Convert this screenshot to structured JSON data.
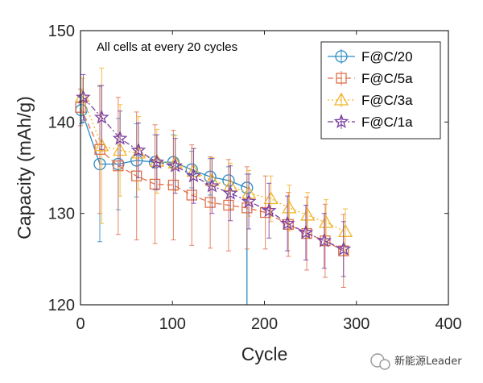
{
  "chart_data": {
    "type": "line",
    "annotation": "All cells at every 20 cycles",
    "xlabel": "Cycle",
    "ylabel": "Capacity (mAh/g)",
    "xlim": [
      0,
      400
    ],
    "ylim": [
      120,
      150
    ],
    "xticks": [
      0,
      100,
      200,
      300,
      400
    ],
    "yticks": [
      120,
      130,
      140,
      150
    ],
    "grid": false,
    "legend_position": "top-right",
    "series": [
      {
        "name": "F@C/20",
        "color": "#2b8cc4",
        "line_style": "solid",
        "marker": "circle",
        "x": [
          1,
          21,
          41,
          61,
          81,
          101,
          121,
          141,
          161,
          181
        ],
        "y": [
          141.3,
          135.4,
          135.4,
          135.8,
          135.6,
          135.6,
          134.8,
          134.0,
          133.6,
          132.8
        ],
        "error": [
          1.5,
          8.5,
          5.0,
          4.0,
          3.0,
          3.0,
          2.0,
          2.0,
          1.5,
          1.5
        ],
        "drop_to": 120
      },
      {
        "name": "F@C/5a",
        "color": "#e0704c",
        "line_style": "dashed",
        "marker": "square",
        "x": [
          0,
          21,
          41,
          61,
          81,
          101,
          121,
          141,
          161,
          181,
          201,
          226,
          246,
          266,
          286
        ],
        "y": [
          141.6,
          137.0,
          135.2,
          134.1,
          133.2,
          133.1,
          132.0,
          131.2,
          130.9,
          130.6,
          130.1,
          128.8,
          127.8,
          127.0,
          125.9
        ],
        "error": [
          2.0,
          7.0,
          7.5,
          7.0,
          6.5,
          6.0,
          5.5,
          5.0,
          5.0,
          4.5,
          4.0,
          3.5,
          4.0,
          4.0,
          4.0
        ]
      },
      {
        "name": "F@C/3a",
        "color": "#f0b429",
        "line_style": "dotted",
        "marker": "triangle",
        "x": [
          2,
          23,
          43,
          63,
          83,
          103,
          123,
          143,
          163,
          183,
          207,
          227,
          247,
          267,
          288
        ],
        "y": [
          142.8,
          137.4,
          136.9,
          136.6,
          135.7,
          135.5,
          134.6,
          133.6,
          133.0,
          132.2,
          131.6,
          130.6,
          129.8,
          129.0,
          128.0
        ],
        "error": [
          2.0,
          8.5,
          5.0,
          4.0,
          3.5,
          3.0,
          2.5,
          2.5,
          2.5,
          2.5,
          2.5,
          2.5,
          2.5,
          2.5,
          2.5
        ]
      },
      {
        "name": "F@C/1a",
        "color": "#7b3fa0",
        "line_style": "dash-dot",
        "marker": "star",
        "x": [
          3,
          23,
          43,
          63,
          83,
          103,
          123,
          143,
          163,
          183,
          205,
          225,
          245,
          265,
          286
        ],
        "y": [
          142.7,
          140.5,
          138.2,
          136.9,
          135.6,
          135.2,
          134.1,
          133.0,
          132.2,
          131.3,
          130.3,
          128.9,
          127.9,
          127.0,
          126.1
        ],
        "error": [
          2.5,
          3.5,
          3.0,
          3.0,
          3.0,
          3.0,
          3.0,
          3.0,
          3.0,
          3.0,
          3.0,
          3.0,
          3.0,
          3.0,
          3.0
        ]
      }
    ]
  },
  "watermark": {
    "text": "新能源Leader",
    "icon": "wechat-icon"
  }
}
